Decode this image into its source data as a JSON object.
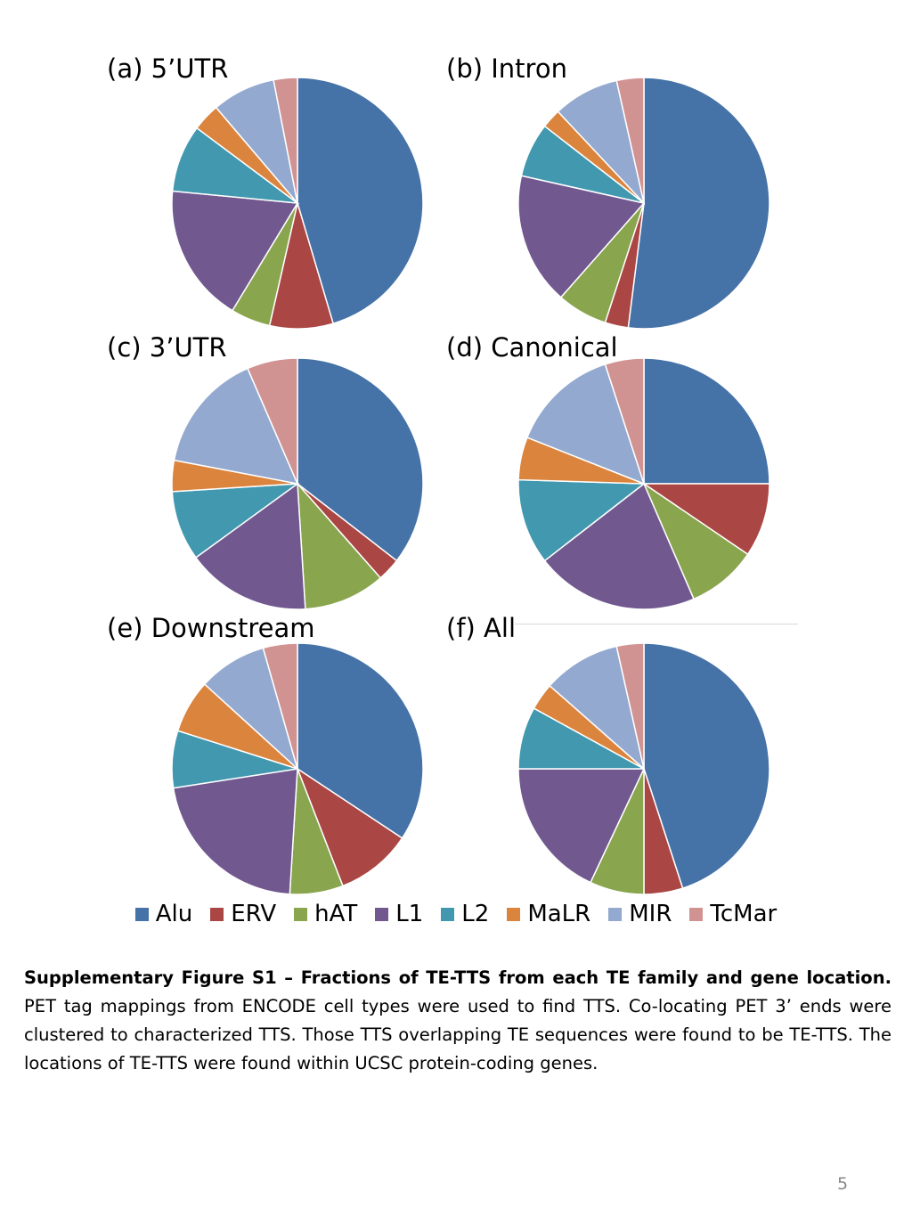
{
  "chart_data": [
    {
      "type": "pie",
      "title": "(a) 5’UTR",
      "labels": [
        "Alu",
        "ERV",
        "hAT",
        "L1",
        "L2",
        "MaLR",
        "MIR",
        "TcMar"
      ],
      "values": [
        44.5,
        8.0,
        5.0,
        17.5,
        8.5,
        3.5,
        8.0,
        3.0
      ]
    },
    {
      "type": "pie",
      "title": "(b) Intron",
      "labels": [
        "Alu",
        "ERV",
        "hAT",
        "L1",
        "L2",
        "MaLR",
        "MIR",
        "TcMar"
      ],
      "values": [
        52.0,
        3.0,
        6.5,
        17.0,
        7.0,
        2.5,
        8.5,
        3.5
      ]
    },
    {
      "type": "pie",
      "title": "(c) 3’UTR",
      "labels": [
        "Alu",
        "ERV",
        "hAT",
        "L1",
        "L2",
        "MaLR",
        "MIR",
        "TcMar"
      ],
      "values": [
        35.5,
        3.0,
        10.5,
        16.0,
        9.0,
        4.0,
        15.5,
        6.5
      ]
    },
    {
      "type": "pie",
      "title": "(d) Canonical",
      "labels": [
        "Alu",
        "ERV",
        "hAT",
        "L1",
        "L2",
        "MaLR",
        "MIR",
        "TcMar"
      ],
      "values": [
        25.0,
        9.5,
        9.0,
        21.0,
        11.0,
        5.5,
        14.0,
        5.0
      ]
    },
    {
      "type": "pie",
      "title": "(e) Downstream",
      "labels": [
        "Alu",
        "ERV",
        "hAT",
        "L1",
        "L2",
        "MaLR",
        "MIR",
        "TcMar"
      ],
      "values": [
        35.0,
        10.0,
        7.0,
        22.0,
        7.5,
        7.0,
        9.0,
        4.5
      ]
    },
    {
      "type": "pie",
      "title": "(f) All",
      "labels": [
        "Alu",
        "ERV",
        "hAT",
        "L1",
        "L2",
        "MaLR",
        "MIR",
        "TcMar"
      ],
      "values": [
        45.0,
        5.0,
        7.0,
        18.0,
        8.0,
        3.5,
        10.0,
        3.5
      ]
    }
  ],
  "legend": [
    {
      "label": "Alu",
      "color": "#4572A7"
    },
    {
      "label": "ERV",
      "color": "#AA4643"
    },
    {
      "label": "hAT",
      "color": "#89A54E"
    },
    {
      "label": "L1",
      "color": "#71588F"
    },
    {
      "label": "L2",
      "color": "#4198AF"
    },
    {
      "label": "MaLR",
      "color": "#DB843D"
    },
    {
      "label": "MIR",
      "color": "#93A9CF"
    },
    {
      "label": "TcMar",
      "color": "#D19392"
    }
  ],
  "caption": {
    "bold": "Supplementary Figure S1 – Fractions of TE-TTS from each TE family and gene location.",
    "body": "PET tag mappings from ENCODE cell types were used to find TTS.  Co-locating PET 3’ ends were clustered to characterized TTS.  Those TTS overlapping TE sequences were found to be TE-TTS.  The locations of TE-TTS were found within UCSC protein-coding genes."
  },
  "page_number": "5"
}
